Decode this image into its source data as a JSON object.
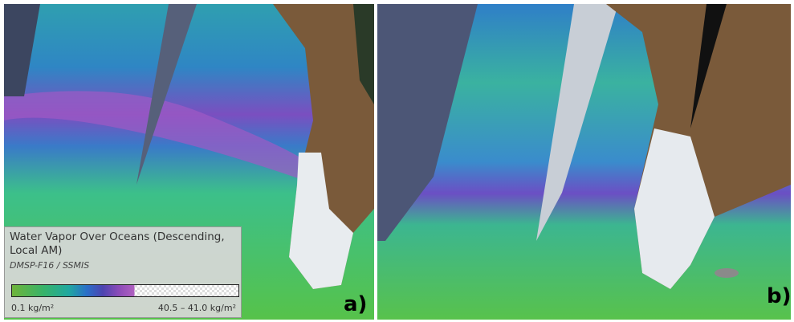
{
  "legend": {
    "title": "Water Vapor Over Oceans (Descending, Local AM)",
    "subtitle": "DMSP-F16 / SSMIS",
    "min_label": "0.1 kg/m²",
    "max_label": "40.5 – 41.0 kg/m²"
  },
  "panels": [
    {
      "label": "a)"
    },
    {
      "label": "b)"
    }
  ]
}
